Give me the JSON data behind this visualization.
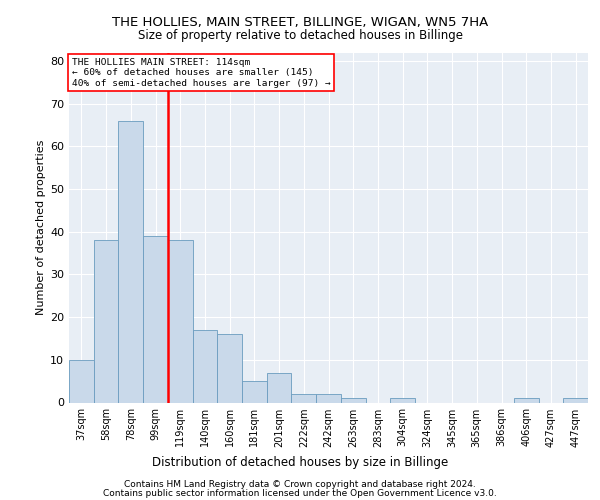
{
  "title1": "THE HOLLIES, MAIN STREET, BILLINGE, WIGAN, WN5 7HA",
  "title2": "Size of property relative to detached houses in Billinge",
  "xlabel": "Distribution of detached houses by size in Billinge",
  "ylabel": "Number of detached properties",
  "categories": [
    "37sqm",
    "58sqm",
    "78sqm",
    "99sqm",
    "119sqm",
    "140sqm",
    "160sqm",
    "181sqm",
    "201sqm",
    "222sqm",
    "242sqm",
    "263sqm",
    "283sqm",
    "304sqm",
    "324sqm",
    "345sqm",
    "365sqm",
    "386sqm",
    "406sqm",
    "427sqm",
    "447sqm"
  ],
  "values": [
    10,
    38,
    66,
    39,
    38,
    17,
    16,
    5,
    7,
    2,
    2,
    1,
    0,
    1,
    0,
    0,
    0,
    0,
    1,
    0,
    1
  ],
  "bar_color": "#c9d9ea",
  "bar_edge_color": "#6a9cbf",
  "vline_color": "red",
  "annotation_line1": "THE HOLLIES MAIN STREET: 114sqm",
  "annotation_line2": "← 60% of detached houses are smaller (145)",
  "annotation_line3": "40% of semi-detached houses are larger (97) →",
  "annotation_box_color": "red",
  "ylim": [
    0,
    82
  ],
  "yticks": [
    0,
    10,
    20,
    30,
    40,
    50,
    60,
    70,
    80
  ],
  "background_color": "#e8eef5",
  "grid_color": "#ffffff",
  "footer1": "Contains HM Land Registry data © Crown copyright and database right 2024.",
  "footer2": "Contains public sector information licensed under the Open Government Licence v3.0."
}
